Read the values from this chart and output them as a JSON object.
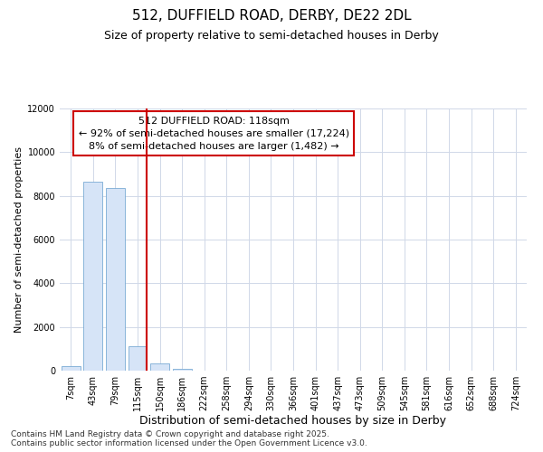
{
  "title": "512, DUFFIELD ROAD, DERBY, DE22 2DL",
  "subtitle": "Size of property relative to semi-detached houses in Derby",
  "xlabel": "Distribution of semi-detached houses by size in Derby",
  "ylabel": "Number of semi-detached properties",
  "categories": [
    "7sqm",
    "43sqm",
    "79sqm",
    "115sqm",
    "150sqm",
    "186sqm",
    "222sqm",
    "258sqm",
    "294sqm",
    "330sqm",
    "366sqm",
    "401sqm",
    "437sqm",
    "473sqm",
    "509sqm",
    "545sqm",
    "581sqm",
    "616sqm",
    "652sqm",
    "688sqm",
    "724sqm"
  ],
  "values": [
    200,
    8650,
    8350,
    1100,
    320,
    65,
    8,
    0,
    0,
    0,
    0,
    0,
    0,
    0,
    0,
    0,
    0,
    0,
    0,
    0,
    0
  ],
  "bar_color": "#d6e4f7",
  "bar_edge_color": "#7aabd4",
  "vline_x_index": 3.42,
  "vline_color": "#cc0000",
  "annotation_line1": "512 DUFFIELD ROAD: 118sqm",
  "annotation_line2": "← 92% of semi-detached houses are smaller (17,224)",
  "annotation_line3": "8% of semi-detached houses are larger (1,482) →",
  "annotation_box_color": "#ffffff",
  "annotation_box_edge": "#cc0000",
  "ylim": [
    0,
    12000
  ],
  "yticks": [
    0,
    2000,
    4000,
    6000,
    8000,
    10000,
    12000
  ],
  "background_color": "#ffffff",
  "grid_color": "#d0d8e8",
  "footer": "Contains HM Land Registry data © Crown copyright and database right 2025.\nContains public sector information licensed under the Open Government Licence v3.0.",
  "title_fontsize": 11,
  "subtitle_fontsize": 9,
  "xlabel_fontsize": 9,
  "ylabel_fontsize": 8,
  "tick_fontsize": 7,
  "footer_fontsize": 6.5,
  "annot_fontsize": 8
}
